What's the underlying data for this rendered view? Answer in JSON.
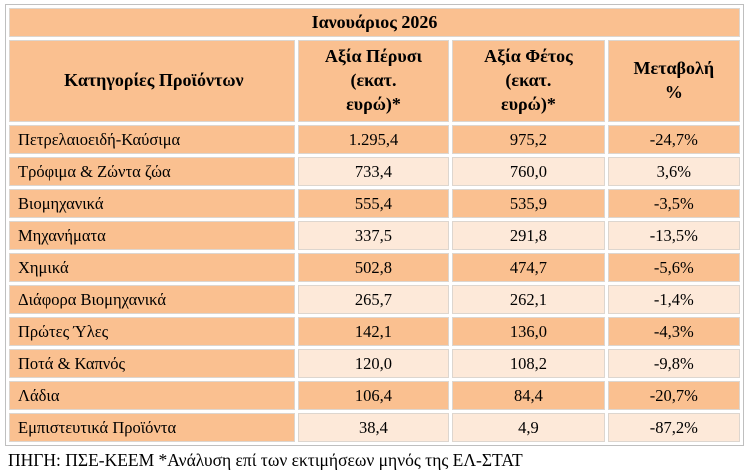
{
  "title": "Ιανουάριος 2026",
  "header": {
    "category": "Κατηγορίες Προϊόντων",
    "last_year_lines": [
      "Αξία Πέρυσι",
      "(εκατ.",
      "ευρώ)*"
    ],
    "this_year_lines": [
      "Αξία Φέτος",
      "(εκατ.",
      "ευρώ)*"
    ],
    "change_lines": [
      "Μεταβολή",
      "%"
    ]
  },
  "rows": [
    {
      "category": "Πετρελαιοειδή-Καύσιμα",
      "last_year": "1.295,4",
      "this_year": "975,2",
      "change": "-24,7%"
    },
    {
      "category": "Τρόφιμα & Ζώντα ζώα",
      "last_year": "733,4",
      "this_year": "760,0",
      "change": "3,6%"
    },
    {
      "category": "Βιομηχανικά",
      "last_year": "555,4",
      "this_year": "535,9",
      "change": "-3,5%"
    },
    {
      "category": "Μηχανήματα",
      "last_year": "337,5",
      "this_year": "291,8",
      "change": "-13,5%"
    },
    {
      "category": "Χημικά",
      "last_year": "502,8",
      "this_year": "474,7",
      "change": "-5,6%"
    },
    {
      "category": "Διάφορα Βιομηχανικά",
      "last_year": "265,7",
      "this_year": "262,1",
      "change": "-1,4%"
    },
    {
      "category": "Πρώτες Ύλες",
      "last_year": "142,1",
      "this_year": "136,0",
      "change": "-4,3%"
    },
    {
      "category": "Ποτά & Καπνός",
      "last_year": "120,0",
      "this_year": "108,2",
      "change": "-9,8%"
    },
    {
      "category": "Λάδια",
      "last_year": "106,4",
      "this_year": "84,4",
      "change": "-20,7%"
    },
    {
      "category": "Εμπιστευτικά Προϊόντα",
      "last_year": "38,4",
      "this_year": "4,9",
      "change": "-87,2%"
    }
  ],
  "source_note": "ΠΗΓΗ: ΠΣΕ-ΚΕΕΜ *Ανάλυση επί των εκτιμήσεων μηνός της ΕΛ-ΣΤΑΤ",
  "colors": {
    "cell_orange": "#FAC090",
    "cell_light": "#FDE9D9",
    "cell_border": "#DDD6CF",
    "table_border": "#BFBFBF",
    "text": "#000000"
  }
}
